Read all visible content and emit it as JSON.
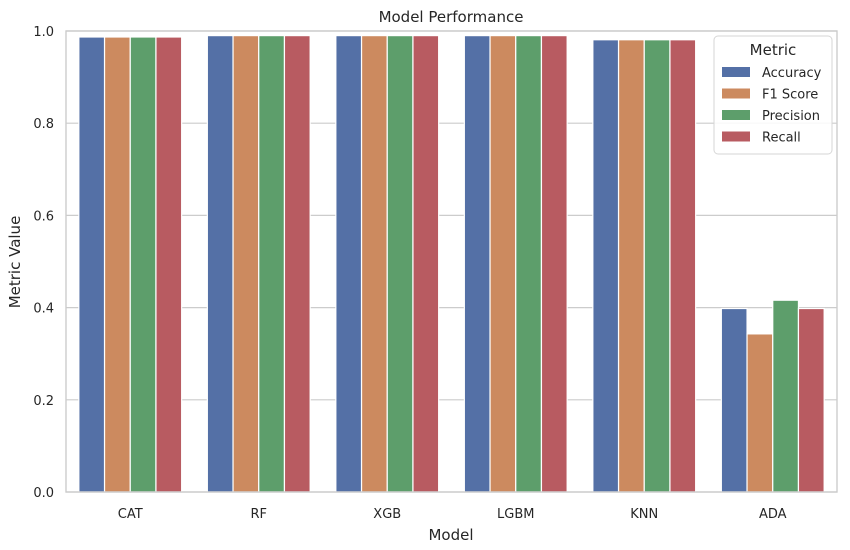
{
  "chart_data": {
    "type": "bar",
    "title": "Model Performance",
    "xlabel": "Model",
    "ylabel": "Metric Value",
    "ylim": [
      0,
      1.0
    ],
    "yticks": [
      "0.0",
      "0.2",
      "0.4",
      "0.6",
      "0.8",
      "1.0"
    ],
    "categories": [
      "CAT",
      "RF",
      "XGB",
      "LGBM",
      "KNN",
      "ADA"
    ],
    "legend": {
      "title": "Metric",
      "placement": "top-right"
    },
    "grid": true,
    "series": [
      {
        "name": "Accuracy",
        "color": "#5470a6",
        "values": [
          0.987,
          0.99,
          0.99,
          0.99,
          0.981,
          0.398
        ]
      },
      {
        "name": "F1 Score",
        "color": "#cc8a5f",
        "values": [
          0.987,
          0.99,
          0.99,
          0.99,
          0.981,
          0.343
        ]
      },
      {
        "name": "Precision",
        "color": "#5d9e6b",
        "values": [
          0.987,
          0.99,
          0.99,
          0.99,
          0.981,
          0.416
        ]
      },
      {
        "name": "Recall",
        "color": "#b85b61",
        "values": [
          0.987,
          0.99,
          0.99,
          0.99,
          0.981,
          0.398
        ]
      }
    ]
  }
}
